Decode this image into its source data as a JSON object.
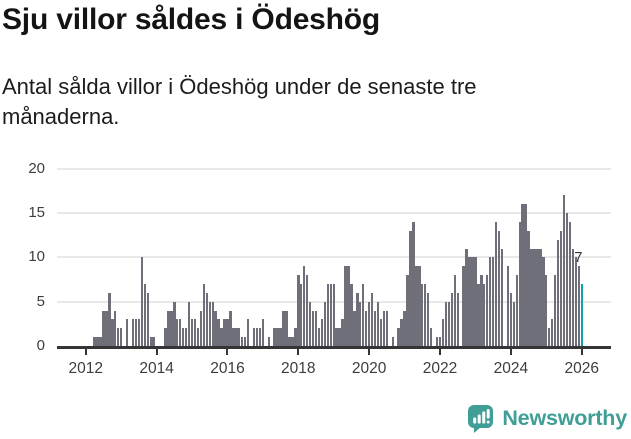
{
  "header": {
    "title": "Sju villor såldes i Ödeshög",
    "subtitle": "Antal sålda villor i Ödeshög under de senaste tre månaderna."
  },
  "chart_data": {
    "type": "bar",
    "title": "Sju villor såldes i Ödeshög",
    "subtitle": "Antal sålda villor i Ödeshög under de senaste tre månaderna.",
    "x_start": "2011-04",
    "x_unit": "month",
    "x_tick_years": [
      2012,
      2014,
      2016,
      2018,
      2020,
      2022,
      2024,
      2026
    ],
    "y_ticks": [
      0,
      5,
      10,
      15,
      20
    ],
    "ylim": [
      0,
      20
    ],
    "grid": true,
    "legend": "none",
    "values": [
      0,
      0,
      0,
      0,
      0,
      0,
      0,
      0,
      0,
      0,
      0,
      0,
      1,
      1,
      1,
      4,
      4,
      6,
      3,
      4,
      2,
      2,
      0,
      3,
      0,
      3,
      3,
      3,
      10,
      7,
      6,
      1,
      1,
      0,
      0,
      0,
      2,
      4,
      4,
      5,
      3,
      3,
      2,
      2,
      5,
      3,
      3,
      2,
      4,
      7,
      6,
      5,
      5,
      4,
      3,
      2,
      3,
      3,
      4,
      2,
      2,
      2,
      1,
      1,
      3,
      0,
      2,
      2,
      2,
      3,
      0,
      1,
      0,
      2,
      2,
      2,
      4,
      4,
      1,
      1,
      2,
      8,
      7,
      9,
      8,
      5,
      4,
      4,
      2,
      3,
      5,
      7,
      7,
      7,
      2,
      2,
      3,
      9,
      9,
      7,
      4,
      6,
      5,
      7,
      4,
      5,
      6,
      4,
      5,
      3,
      4,
      4,
      0,
      1,
      0,
      2,
      3,
      4,
      8,
      13,
      14,
      9,
      9,
      7,
      7,
      6,
      2,
      0,
      1,
      1,
      3,
      5,
      5,
      6,
      8,
      6,
      0,
      9,
      11,
      10,
      10,
      10,
      7,
      8,
      7,
      8,
      10,
      10,
      14,
      13,
      11,
      0,
      9,
      6,
      5,
      8,
      14,
      16,
      16,
      13,
      11,
      11,
      11,
      11,
      10,
      8,
      2,
      3,
      8,
      12,
      13,
      17,
      15,
      14,
      11,
      10,
      9,
      7
    ],
    "highlight_last": {
      "value": 7,
      "label": "7"
    },
    "colors": {
      "bar": "#6f6f79",
      "highlight": "#10a2a7",
      "grid": "#e8e8e8",
      "axis": "#353535",
      "tick_label": "#3d3d3d"
    }
  },
  "annotation": {
    "last_value_label": "7"
  },
  "footer": {
    "brand": "Newsworthy",
    "brand_color": "#3f9e96"
  }
}
